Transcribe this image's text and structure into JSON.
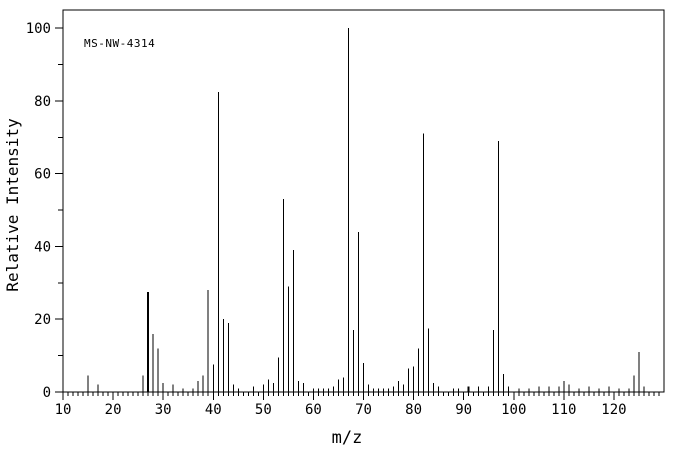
{
  "colors": {
    "background": "#ffffff",
    "axis": "#000000",
    "bar": "#000000",
    "text": "#000000"
  },
  "chart_data": {
    "type": "bar",
    "subtype": "mass-spectrum-stick-plot",
    "annotation": "MS-NW-4314",
    "xlabel": "m/z",
    "ylabel": "Relative Intensity",
    "x_axis": {
      "min": 10,
      "max": 130,
      "major_tick": 10,
      "minor_tick": 1,
      "major_tick_labels": [
        "10",
        "20",
        "30",
        "40",
        "50",
        "60",
        "70",
        "80",
        "90",
        "100",
        "110",
        "120"
      ]
    },
    "y_axis": {
      "min": 0,
      "max": 105,
      "major_tick": 20,
      "minor_tick": 10,
      "major_tick_labels": [
        "0",
        "20",
        "40",
        "60",
        "80",
        "100"
      ]
    },
    "grid": false,
    "legend": false,
    "peaks_format": [
      "mz",
      "relative_intensity"
    ],
    "peaks": [
      [
        15,
        4.5
      ],
      [
        17,
        2
      ],
      [
        26,
        4.5
      ],
      [
        27,
        27.5
      ],
      [
        28,
        16
      ],
      [
        29,
        12
      ],
      [
        30,
        2.5
      ],
      [
        32,
        2
      ],
      [
        34,
        1
      ],
      [
        36,
        1
      ],
      [
        37,
        3
      ],
      [
        38,
        4.5
      ],
      [
        39,
        28
      ],
      [
        40,
        7.5
      ],
      [
        41,
        82.5
      ],
      [
        42,
        20
      ],
      [
        43,
        19
      ],
      [
        44,
        2
      ],
      [
        45,
        1
      ],
      [
        48,
        1.5
      ],
      [
        50,
        2
      ],
      [
        51,
        3.5
      ],
      [
        52,
        2.5
      ],
      [
        53,
        9.5
      ],
      [
        54,
        53
      ],
      [
        55,
        29
      ],
      [
        56,
        39
      ],
      [
        57,
        3
      ],
      [
        58,
        2.5
      ],
      [
        60,
        1
      ],
      [
        61,
        1
      ],
      [
        62,
        1
      ],
      [
        63,
        1
      ],
      [
        64,
        1.5
      ],
      [
        65,
        3.5
      ],
      [
        66,
        4
      ],
      [
        67,
        100
      ],
      [
        68,
        17
      ],
      [
        69,
        44
      ],
      [
        70,
        8
      ],
      [
        71,
        2
      ],
      [
        72,
        1
      ],
      [
        73,
        1
      ],
      [
        74,
        1
      ],
      [
        75,
        1
      ],
      [
        76,
        1.5
      ],
      [
        77,
        3
      ],
      [
        78,
        2
      ],
      [
        79,
        6.5
      ],
      [
        80,
        7
      ],
      [
        81,
        12
      ],
      [
        82,
        71
      ],
      [
        83,
        17.5
      ],
      [
        84,
        2.5
      ],
      [
        85,
        1.5
      ],
      [
        88,
        1
      ],
      [
        89,
        1
      ],
      [
        91,
        1.5
      ],
      [
        93,
        1.5
      ],
      [
        95,
        1.5
      ],
      [
        96,
        17
      ],
      [
        97,
        69
      ],
      [
        98,
        5
      ],
      [
        99,
        1.5
      ],
      [
        101,
        1
      ],
      [
        103,
        1
      ],
      [
        105,
        1.5
      ],
      [
        107,
        1.5
      ],
      [
        109,
        1.5
      ],
      [
        110,
        3
      ],
      [
        111,
        2
      ],
      [
        113,
        1
      ],
      [
        115,
        1.5
      ],
      [
        117,
        1
      ],
      [
        119,
        1.5
      ],
      [
        121,
        1
      ],
      [
        123,
        1
      ],
      [
        124,
        4.5
      ],
      [
        125,
        11
      ],
      [
        126,
        1.5
      ]
    ],
    "bold_peaks": [
      27,
      91
    ]
  }
}
